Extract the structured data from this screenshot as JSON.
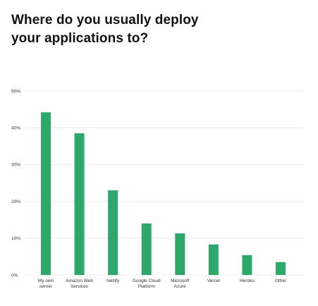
{
  "title_lines": [
    "Where do you usually deploy",
    "your applications to?"
  ],
  "colors": {
    "bar": "#2da86b",
    "grid": "#e6e6e6",
    "text": "#333333"
  },
  "chart_data": {
    "type": "bar",
    "title": "Where do you usually deploy your applications to?",
    "categories": [
      [
        "My own",
        "server"
      ],
      [
        "Amazon Web",
        "Services"
      ],
      [
        "Netlify"
      ],
      [
        "Google Cloud",
        "Platform"
      ],
      [
        "Microsoft",
        "Azure"
      ],
      [
        "Vercel"
      ],
      [
        "Heroku"
      ],
      [
        "Other"
      ]
    ],
    "values": [
      44.2,
      38.5,
      23.0,
      14.0,
      11.3,
      8.3,
      5.4,
      3.5
    ],
    "ylim": [
      0,
      50
    ],
    "yticks": [
      0,
      10,
      20,
      30,
      40,
      50
    ],
    "ytick_labels": [
      "0%",
      "10%",
      "20%",
      "30%",
      "40%",
      "50%"
    ],
    "xlabel": "",
    "ylabel": "",
    "grid": true,
    "legend": "none"
  }
}
